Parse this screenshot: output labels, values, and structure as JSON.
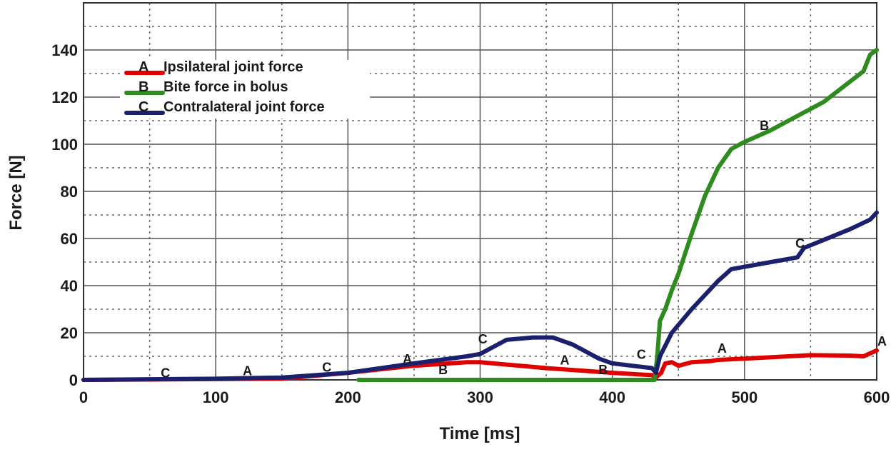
{
  "chart_data": {
    "type": "line",
    "title": "",
    "xlabel": "Time [ms]",
    "ylabel": "Force [N]",
    "xlim": [
      0,
      600
    ],
    "ylim": [
      0,
      160
    ],
    "xticks": [
      0,
      100,
      200,
      300,
      400,
      500,
      600
    ],
    "yticks": [
      0,
      20,
      40,
      60,
      80,
      100,
      120,
      140
    ],
    "grid": true,
    "legend_position": "top-left",
    "series": [
      {
        "name": "Ipsilateral joint force",
        "key": "A",
        "color": "#e00000",
        "points": [
          [
            0,
            0
          ],
          [
            150,
            0.5
          ],
          [
            200,
            3
          ],
          [
            250,
            6
          ],
          [
            290,
            7.5
          ],
          [
            300,
            7.5
          ],
          [
            350,
            5
          ],
          [
            400,
            3
          ],
          [
            430,
            2
          ],
          [
            433,
            1
          ],
          [
            437,
            3
          ],
          [
            440,
            7
          ],
          [
            445,
            7.5
          ],
          [
            450,
            6
          ],
          [
            460,
            7.5
          ],
          [
            475,
            8
          ],
          [
            480,
            8.5
          ],
          [
            500,
            9
          ],
          [
            550,
            10.5
          ],
          [
            580,
            10.3
          ],
          [
            590,
            10
          ],
          [
            600,
            12.5
          ]
        ]
      },
      {
        "name": "Bite force in bolus",
        "key": "B",
        "color": "#2e8b1e",
        "points": [
          [
            208,
            0
          ],
          [
            432,
            0
          ],
          [
            434,
            10
          ],
          [
            436,
            25
          ],
          [
            440,
            30
          ],
          [
            445,
            38
          ],
          [
            450,
            45
          ],
          [
            460,
            62
          ],
          [
            470,
            78
          ],
          [
            480,
            90
          ],
          [
            490,
            98
          ],
          [
            500,
            101
          ],
          [
            520,
            106
          ],
          [
            540,
            112
          ],
          [
            560,
            118
          ],
          [
            590,
            131
          ],
          [
            595,
            138
          ],
          [
            600,
            140
          ]
        ]
      },
      {
        "name": "Contralateral joint force",
        "key": "C",
        "color": "#1a1f6e",
        "points": [
          [
            0,
            0
          ],
          [
            100,
            0.5
          ],
          [
            150,
            1
          ],
          [
            200,
            3
          ],
          [
            250,
            7
          ],
          [
            290,
            10
          ],
          [
            300,
            11
          ],
          [
            320,
            17
          ],
          [
            340,
            18
          ],
          [
            355,
            18
          ],
          [
            370,
            15
          ],
          [
            390,
            9
          ],
          [
            400,
            7
          ],
          [
            430,
            5
          ],
          [
            433,
            3
          ],
          [
            436,
            10
          ],
          [
            445,
            20
          ],
          [
            460,
            30
          ],
          [
            480,
            42
          ],
          [
            490,
            47
          ],
          [
            520,
            50
          ],
          [
            540,
            52
          ],
          [
            545,
            56
          ],
          [
            580,
            64
          ],
          [
            595,
            68
          ],
          [
            600,
            71
          ]
        ]
      }
    ],
    "annotations": [
      {
        "text": "C",
        "x": 62,
        "y": 1
      },
      {
        "text": "A",
        "x": 124,
        "y": 2
      },
      {
        "text": "C",
        "x": 184,
        "y": 3.5
      },
      {
        "text": "A",
        "x": 245,
        "y": 7
      },
      {
        "text": "C",
        "x": 302,
        "y": 15.5
      },
      {
        "text": "B",
        "x": 272,
        "y": 2.5
      },
      {
        "text": "A",
        "x": 364,
        "y": 6.5
      },
      {
        "text": "B",
        "x": 393,
        "y": 2.5
      },
      {
        "text": "C",
        "x": 422,
        "y": 9
      },
      {
        "text": "A",
        "x": 483,
        "y": 11.5
      },
      {
        "text": "B",
        "x": 515,
        "y": 106
      },
      {
        "text": "C",
        "x": 542,
        "y": 56
      },
      {
        "text": "A",
        "x": 604,
        "y": 14.5
      }
    ]
  }
}
